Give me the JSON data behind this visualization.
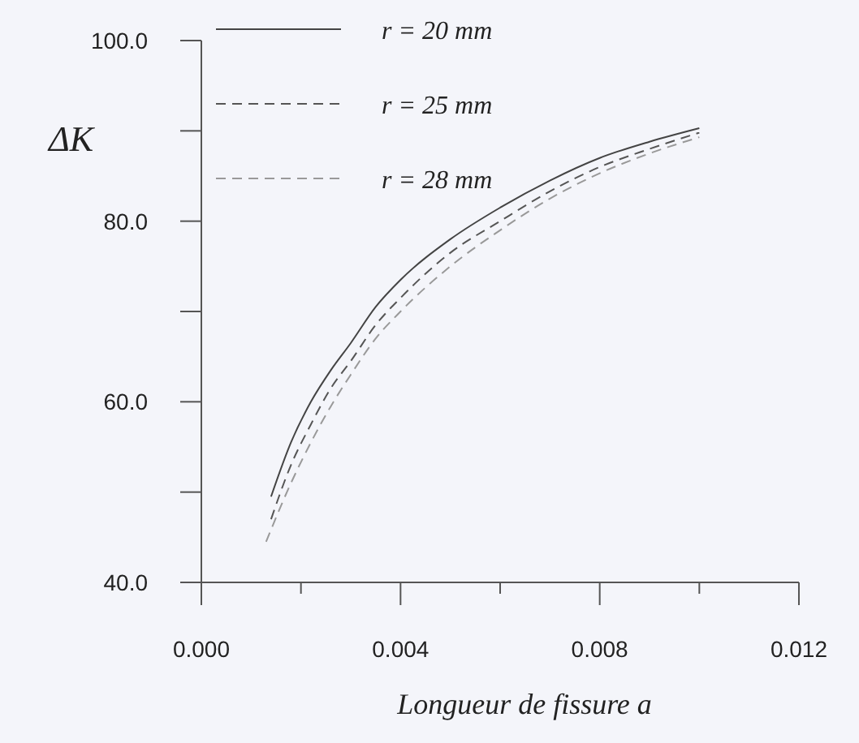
{
  "chart_data": {
    "type": "line",
    "xlabel": "Longueur de fissure a",
    "ylabel": "ΔK",
    "xlim": [
      0,
      0.012
    ],
    "ylim": [
      40,
      100
    ],
    "xticks": [
      {
        "value": 0,
        "label": "0.000"
      },
      {
        "value": 0.002,
        "label": null
      },
      {
        "value": 0.004,
        "label": "0.004"
      },
      {
        "value": 0.006,
        "label": null
      },
      {
        "value": 0.008,
        "label": "0.008"
      },
      {
        "value": 0.01,
        "label": null
      },
      {
        "value": 0.012,
        "label": "0.012"
      }
    ],
    "yticks": [
      {
        "value": 40,
        "label": "40.0"
      },
      {
        "value": 50,
        "label": null
      },
      {
        "value": 60,
        "label": "60.0"
      },
      {
        "value": 70,
        "label": null
      },
      {
        "value": 80,
        "label": "80.0"
      },
      {
        "value": 90,
        "label": null
      },
      {
        "value": 100,
        "label": "100.0"
      }
    ],
    "grid": false,
    "legend": "top left",
    "marker": "none",
    "series": [
      {
        "name": "r = 20 mm",
        "color": "#444444",
        "line_style": "solid",
        "x": [
          0.0014,
          0.0018,
          0.0022,
          0.0026,
          0.003,
          0.0035,
          0.004,
          0.005,
          0.006,
          0.007,
          0.008,
          0.009,
          0.01
        ],
        "values": [
          49.5,
          55.5,
          60,
          63.5,
          66.5,
          70.5,
          73.5,
          78,
          81.5,
          84.5,
          87,
          88.8,
          90.3
        ]
      },
      {
        "name": "r = 25 mm",
        "color": "#555555",
        "line_style": "dashed",
        "x": [
          0.0014,
          0.0018,
          0.0022,
          0.0026,
          0.003,
          0.0035,
          0.004,
          0.005,
          0.006,
          0.007,
          0.008,
          0.009,
          0.01
        ],
        "values": [
          47,
          53,
          57.5,
          61.5,
          64.5,
          68.5,
          71.5,
          76.5,
          80,
          83.3,
          86,
          88,
          89.8
        ]
      },
      {
        "name": "r = 28 mm",
        "color": "#999999",
        "line_style": "dashed",
        "x": [
          0.0013,
          0.0018,
          0.0022,
          0.0026,
          0.003,
          0.0035,
          0.004,
          0.005,
          0.006,
          0.007,
          0.008,
          0.009,
          0.01
        ],
        "values": [
          44.5,
          51,
          55.5,
          59.5,
          63,
          67,
          70,
          75,
          79,
          82.5,
          85.3,
          87.5,
          89.3
        ]
      }
    ]
  }
}
